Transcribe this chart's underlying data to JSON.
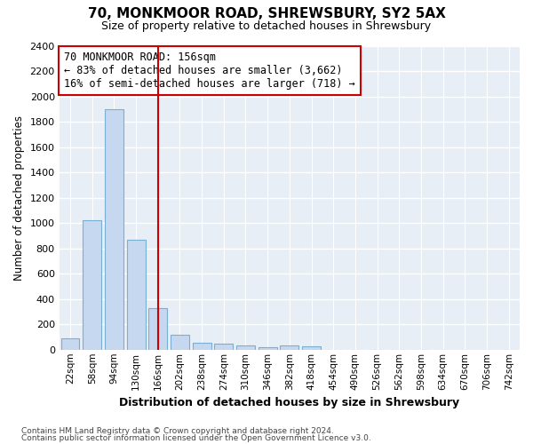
{
  "title1": "70, MONKMOOR ROAD, SHREWSBURY, SY2 5AX",
  "title2": "Size of property relative to detached houses in Shrewsbury",
  "xlabel": "Distribution of detached houses by size in Shrewsbury",
  "ylabel": "Number of detached properties",
  "bar_labels": [
    "22sqm",
    "58sqm",
    "94sqm",
    "130sqm",
    "166sqm",
    "202sqm",
    "238sqm",
    "274sqm",
    "310sqm",
    "346sqm",
    "382sqm",
    "418sqm",
    "454sqm",
    "490sqm",
    "526sqm",
    "562sqm",
    "598sqm",
    "634sqm",
    "670sqm",
    "706sqm",
    "742sqm"
  ],
  "bar_values": [
    90,
    1025,
    1900,
    870,
    325,
    115,
    52,
    45,
    30,
    18,
    35,
    28,
    0,
    0,
    0,
    0,
    0,
    0,
    0,
    0,
    0
  ],
  "bar_color": "#c5d8f0",
  "bar_edgecolor": "#7aafd4",
  "vline_pos": 4.0,
  "vline_color": "#cc0000",
  "annotation_text": "70 MONKMOOR ROAD: 156sqm\n← 83% of detached houses are smaller (3,662)\n16% of semi-detached houses are larger (718) →",
  "ann_facecolor": "#ffffff",
  "ann_edgecolor": "#cc0000",
  "ylim_max": 2400,
  "yticks": [
    0,
    200,
    400,
    600,
    800,
    1000,
    1200,
    1400,
    1600,
    1800,
    2000,
    2200,
    2400
  ],
  "footer1": "Contains HM Land Registry data © Crown copyright and database right 2024.",
  "footer2": "Contains public sector information licensed under the Open Government Licence v3.0.",
  "fig_bg": "#ffffff",
  "plot_bg": "#e8eef5"
}
